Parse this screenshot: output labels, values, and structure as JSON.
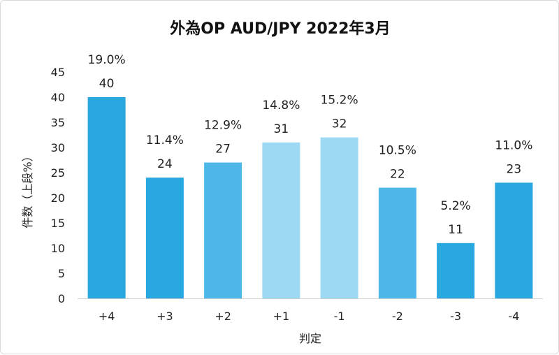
{
  "chart_data": {
    "type": "bar",
    "title": "外為OP AUD/JPY 2022年3月",
    "xlabel": "判定",
    "ylabel": "件数（上段%）",
    "categories": [
      "+4",
      "+3",
      "+2",
      "+1",
      "-1",
      "-2",
      "-3",
      "-4"
    ],
    "values": [
      40,
      24,
      27,
      31,
      32,
      22,
      11,
      23
    ],
    "percent_labels": [
      "19.0%",
      "11.4%",
      "12.9%",
      "14.8%",
      "15.2%",
      "10.5%",
      "5.2%",
      "11.0%"
    ],
    "bar_colors": [
      "#29A8E0",
      "#29A8E0",
      "#4DB8E8",
      "#9DD9F3",
      "#9DD9F3",
      "#4DB8E8",
      "#29A8E0",
      "#29A8E0"
    ],
    "ylim": [
      0,
      45
    ],
    "yticks": [
      0,
      5,
      10,
      15,
      20,
      25,
      30,
      35,
      40,
      45
    ],
    "grid": false,
    "legend": "none"
  }
}
